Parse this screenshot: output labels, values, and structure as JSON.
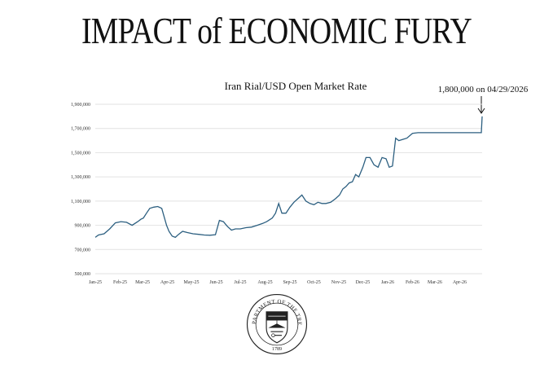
{
  "headline": "IMPACT of ECONOMIC FURY",
  "chart_data": {
    "type": "line",
    "title": "Iran Rial/USD Open Market Rate",
    "annotation": "1,800,000 on 04/29/2026",
    "ylim": [
      500000,
      1900000
    ],
    "grid": true,
    "line_color": "#2c5f80",
    "y_ticks": [
      500000,
      700000,
      900000,
      1100000,
      1300000,
      1500000,
      1700000,
      1900000
    ],
    "y_tick_labels": [
      "500,000",
      "700,000",
      "900,000",
      "1,100,000",
      "1,300,000",
      "1,500,000",
      "1,700,000",
      "1,900,000"
    ],
    "x_ticks": [
      "2025-01-01",
      "2025-02-01",
      "2025-03-01",
      "2025-04-01",
      "2025-05-01",
      "2025-06-01",
      "2025-07-01",
      "2025-08-01",
      "2025-09-01",
      "2025-10-01",
      "2025-11-01",
      "2025-12-01",
      "2026-01-01",
      "2026-02-01",
      "2026-03-01",
      "2026-04-01"
    ],
    "x_tick_labels": [
      "Jan-25",
      "Feb-25",
      "Mar-25",
      "Apr-25",
      "May-25",
      "Jun-25",
      "Jul-25",
      "Aug-25",
      "Sep-25",
      "Oct-25",
      "Nov-25",
      "Dec-25",
      "Jan-26",
      "Feb-26",
      "Mar-26",
      "Apr-26"
    ],
    "xlim": [
      "2025-01-01",
      "2026-04-29"
    ],
    "series": [
      {
        "x": [
          "2025-01-01",
          "2025-01-05",
          "2025-01-12",
          "2025-01-19",
          "2025-01-26",
          "2025-02-02",
          "2025-02-09",
          "2025-02-16",
          "2025-02-23",
          "2025-02-27",
          "2025-03-02",
          "2025-03-06",
          "2025-03-10",
          "2025-03-15",
          "2025-03-20",
          "2025-03-25",
          "2025-03-31",
          "2025-04-03",
          "2025-04-07",
          "2025-04-11",
          "2025-04-15",
          "2025-04-20",
          "2025-04-26",
          "2025-05-03",
          "2025-05-10",
          "2025-05-17",
          "2025-05-24",
          "2025-05-31",
          "2025-06-05",
          "2025-06-10",
          "2025-06-15",
          "2025-06-20",
          "2025-06-25",
          "2025-07-01",
          "2025-07-08",
          "2025-07-15",
          "2025-07-22",
          "2025-07-29",
          "2025-08-03",
          "2025-08-10",
          "2025-08-14",
          "2025-08-18",
          "2025-08-22",
          "2025-08-27",
          "2025-09-01",
          "2025-09-06",
          "2025-09-11",
          "2025-09-16",
          "2025-09-21",
          "2025-09-26",
          "2025-10-01",
          "2025-10-06",
          "2025-10-11",
          "2025-10-16",
          "2025-10-22",
          "2025-10-28",
          "2025-11-02",
          "2025-11-06",
          "2025-11-10",
          "2025-11-14",
          "2025-11-18",
          "2025-11-22",
          "2025-11-26",
          "2025-12-01",
          "2025-12-05",
          "2025-12-10",
          "2025-12-15",
          "2025-12-20",
          "2025-12-25",
          "2025-12-30",
          "2026-01-03",
          "2026-01-07",
          "2026-01-11",
          "2026-01-15",
          "2026-01-20",
          "2026-01-25",
          "2026-02-01",
          "2026-02-08",
          "2026-02-15",
          "2026-02-22",
          "2026-03-01",
          "2026-03-15",
          "2026-04-01",
          "2026-04-15",
          "2026-04-28",
          "2026-04-29"
        ],
        "values": [
          800000,
          820000,
          830000,
          870000,
          920000,
          930000,
          925000,
          900000,
          930000,
          950000,
          960000,
          1000000,
          1040000,
          1050000,
          1055000,
          1040000,
          900000,
          850000,
          810000,
          800000,
          825000,
          850000,
          840000,
          830000,
          825000,
          820000,
          818000,
          822000,
          940000,
          930000,
          890000,
          860000,
          870000,
          870000,
          880000,
          885000,
          900000,
          915000,
          930000,
          960000,
          1000000,
          1080000,
          1000000,
          1000000,
          1050000,
          1090000,
          1120000,
          1150000,
          1100000,
          1080000,
          1070000,
          1090000,
          1080000,
          1080000,
          1090000,
          1120000,
          1150000,
          1200000,
          1220000,
          1250000,
          1260000,
          1320000,
          1300000,
          1380000,
          1460000,
          1460000,
          1400000,
          1380000,
          1460000,
          1450000,
          1380000,
          1390000,
          1620000,
          1600000,
          1610000,
          1620000,
          1660000,
          1665000,
          1665000,
          1665000,
          1665000,
          1665000,
          1665000,
          1665000,
          1665000,
          1800000
        ]
      }
    ]
  }
}
